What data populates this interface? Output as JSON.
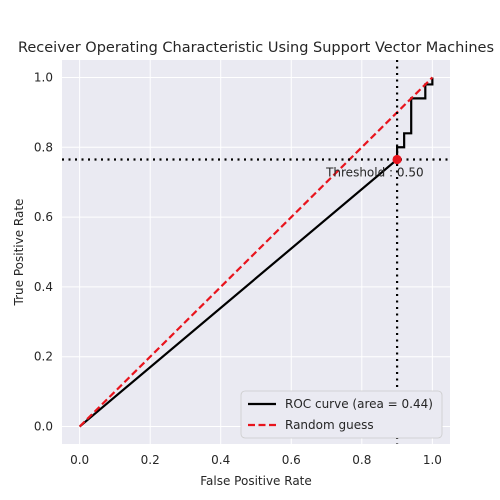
{
  "chart_data": {
    "type": "line",
    "title": "Receiver Operating Characteristic Using Support Vector Machines",
    "xlabel": "False Positive Rate",
    "ylabel": "True Positive Rate",
    "xlim": [
      -0.05,
      1.05
    ],
    "ylim": [
      -0.05,
      1.05
    ],
    "xticks": [
      0.0,
      0.2,
      0.4,
      0.6,
      0.8,
      1.0
    ],
    "yticks": [
      0.0,
      0.2,
      0.4,
      0.6,
      0.8,
      1.0
    ],
    "xtick_labels": [
      "0.0",
      "0.2",
      "0.4",
      "0.6",
      "0.8",
      "1.0"
    ],
    "ytick_labels": [
      "0.0",
      "0.2",
      "0.4",
      "0.6",
      "0.8",
      "1.0"
    ],
    "grid": true,
    "legend_position": "lower-right",
    "series": [
      {
        "name": "ROC curve (area = 0.44)",
        "color": "#000000",
        "style": "solid",
        "x": [
          0.0,
          0.9,
          0.9,
          0.92,
          0.92,
          0.94,
          0.94,
          0.98,
          0.98,
          1.0,
          1.0
        ],
        "y": [
          0.0,
          0.765,
          0.8,
          0.8,
          0.84,
          0.84,
          0.94,
          0.94,
          0.98,
          0.98,
          1.0
        ]
      },
      {
        "name": "Random guess",
        "color": "#e8141d",
        "style": "dashed",
        "x": [
          0.0,
          1.0
        ],
        "y": [
          0.0,
          1.0
        ]
      }
    ],
    "threshold": {
      "x": 0.9,
      "y": 0.765,
      "label": "Threshold : 0.50",
      "marker_color": "#e8141d"
    }
  }
}
